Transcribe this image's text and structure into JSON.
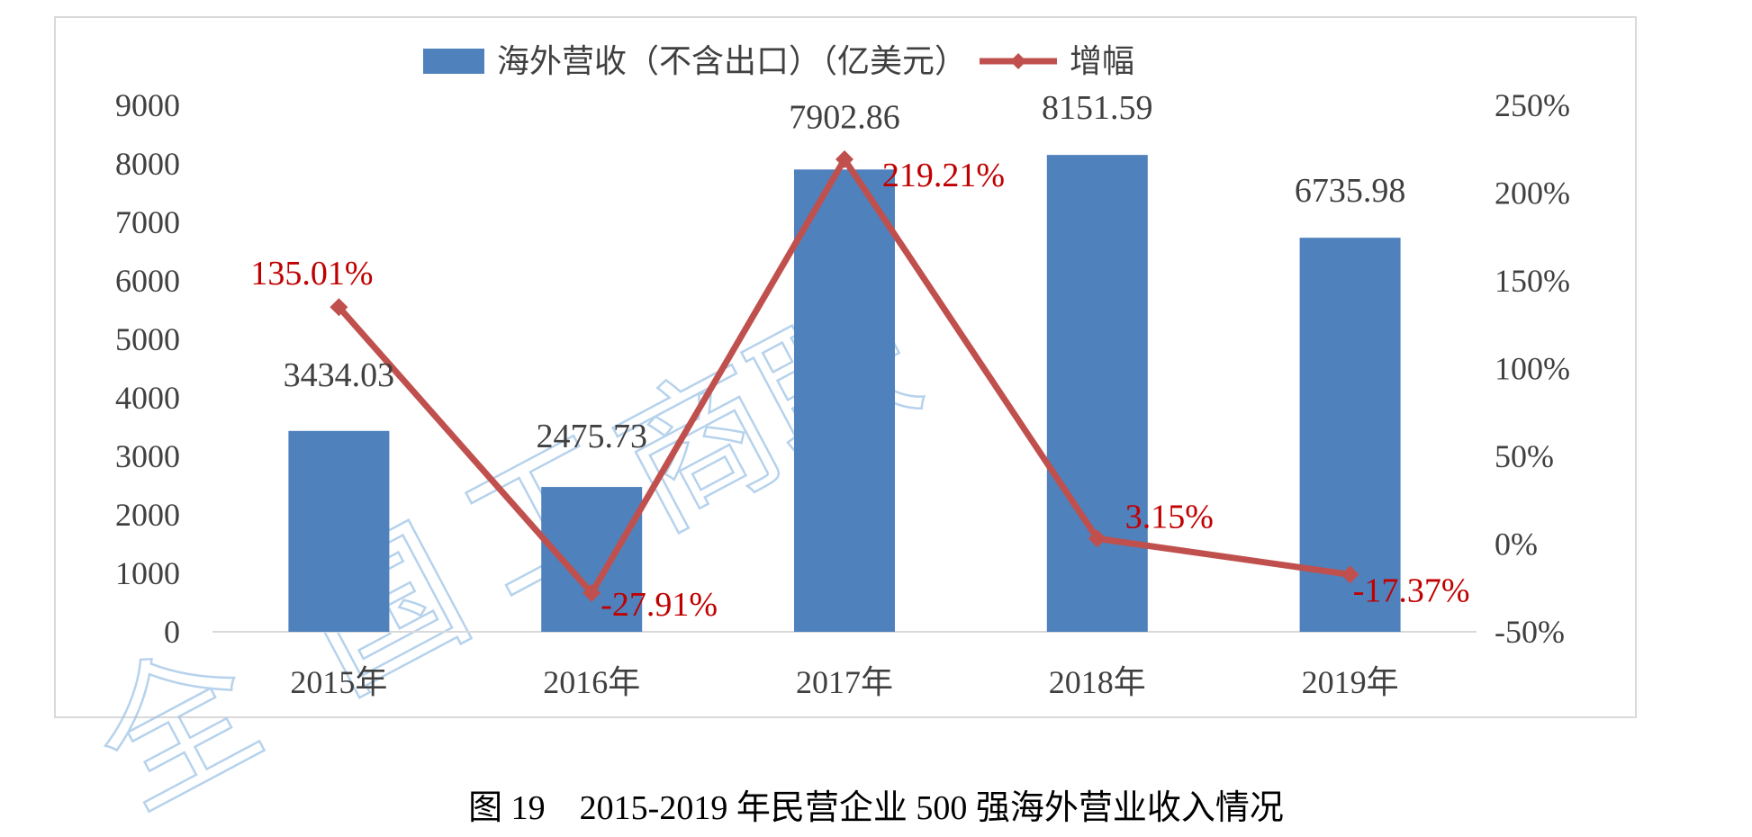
{
  "chart_data": {
    "type": "bar",
    "categories": [
      "2015年",
      "2016年",
      "2017年",
      "2018年",
      "2019年"
    ],
    "series": [
      {
        "name": "海外营收（不含出口）（亿美元）",
        "type": "bar",
        "axis": "left",
        "color": "#4f81bd",
        "values": [
          3434.03,
          2475.73,
          7902.86,
          8151.59,
          6735.98
        ],
        "labels": [
          "3434.03",
          "2475.73",
          "7902.86",
          "8151.59",
          "6735.98"
        ]
      },
      {
        "name": "增幅",
        "type": "line",
        "axis": "right",
        "color": "#c0504d",
        "values": [
          135.01,
          -27.91,
          219.21,
          3.15,
          -17.37
        ],
        "labels": [
          "135.01%",
          "-27.91%",
          "219.21%",
          "3.15%",
          "-17.37%"
        ]
      }
    ],
    "left_axis": {
      "range": [
        0,
        9000
      ],
      "ticks": [
        "0",
        "1000",
        "2000",
        "3000",
        "4000",
        "5000",
        "6000",
        "7000",
        "8000",
        "9000"
      ]
    },
    "right_axis": {
      "range": [
        -50,
        250
      ],
      "ticks": [
        "-50%",
        "0%",
        "50%",
        "100%",
        "150%",
        "200%",
        "250%"
      ]
    },
    "legend_position": "top",
    "grid": false
  },
  "caption": "图 19　2015-2019 年民营企业 500 强海外营业收入情况",
  "watermark": "全国工商联"
}
